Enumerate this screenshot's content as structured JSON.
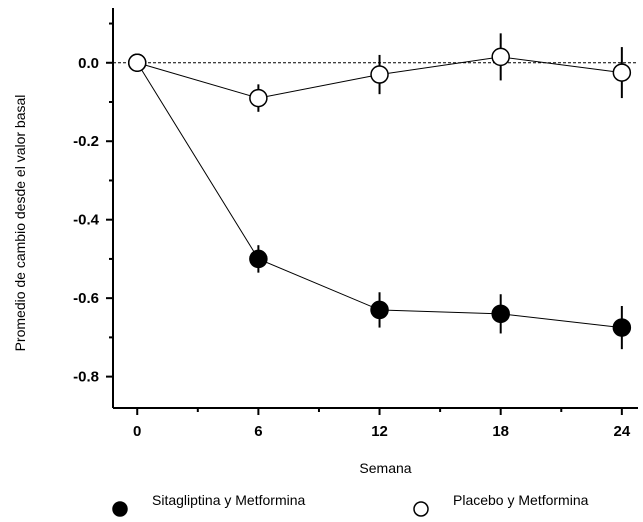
{
  "chart_data": {
    "type": "line",
    "xlabel": "Semana",
    "ylabel": "Promedio de cambio desde el valor basal",
    "x_ticks": [
      0,
      6,
      12,
      18,
      24
    ],
    "y_ticks": [
      0.0,
      -0.2,
      -0.4,
      -0.6,
      -0.8
    ],
    "y_tick_labels": [
      "0.0",
      "-0.2",
      "-0.4",
      "-0.6",
      "-0.8"
    ],
    "xlim": [
      -1.2,
      24.8
    ],
    "ylim": [
      -0.88,
      0.16
    ],
    "grid": false,
    "reference_line": 0.0,
    "legend_position": "bottom",
    "series": [
      {
        "name": "Sitagliptina y Metformina",
        "marker": "filled-circle",
        "x": [
          0,
          6,
          12,
          18,
          24
        ],
        "y": [
          0.0,
          -0.5,
          -0.63,
          -0.64,
          -0.675
        ],
        "err": [
          0.0,
          0.035,
          0.045,
          0.05,
          0.055
        ]
      },
      {
        "name": "Placebo y Metformina",
        "marker": "open-circle",
        "x": [
          0,
          6,
          12,
          18,
          24
        ],
        "y": [
          0.0,
          -0.09,
          -0.03,
          0.015,
          -0.025
        ],
        "err": [
          0.0,
          0.035,
          0.05,
          0.06,
          0.065
        ]
      }
    ]
  }
}
